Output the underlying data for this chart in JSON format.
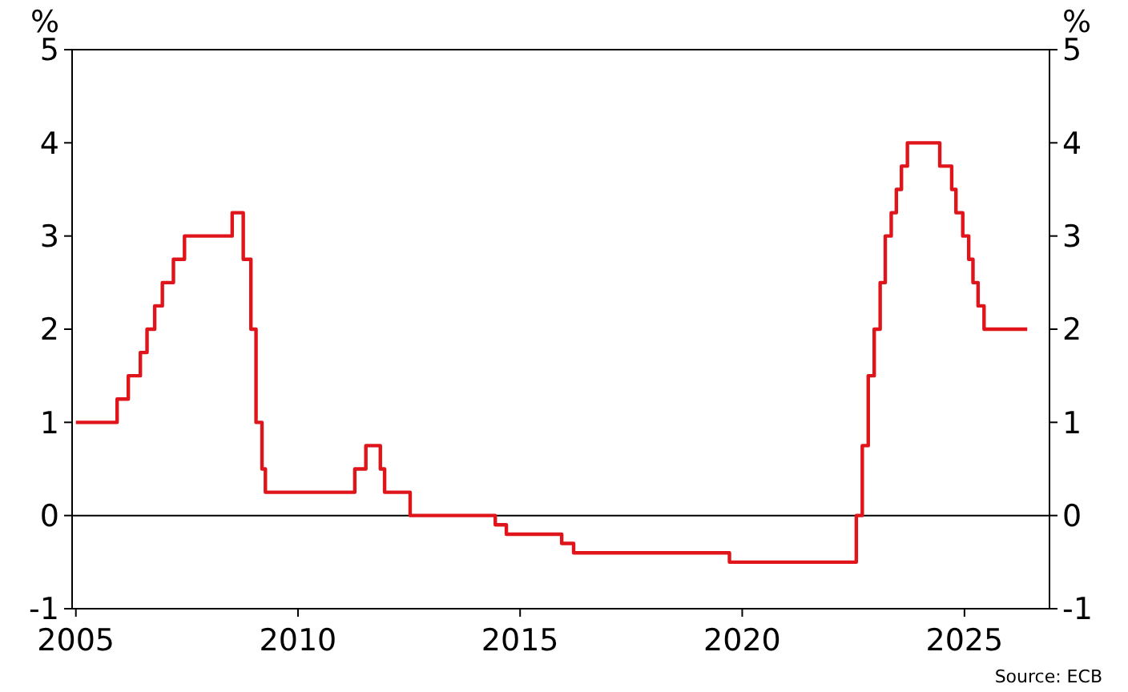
{
  "chart_data": {
    "type": "step",
    "ylabel": "%",
    "y2label": "%",
    "annotations": [
      "Source: ECB"
    ],
    "x": [
      "2005-01",
      "2005-12-06",
      "2006-03-08",
      "2006-06-15",
      "2006-08-09",
      "2006-10-11",
      "2006-12-13",
      "2007-03-14",
      "2007-06-13",
      "2008-07-09",
      "2008-10-08",
      "2008-12-10",
      "2009-01-21",
      "2009-03-11",
      "2009-04-08",
      "2011-04-13",
      "2011-07-13",
      "2011-11-09",
      "2011-12-14",
      "2012-07-11",
      "2014-06-11",
      "2014-09-10",
      "2015-12-09",
      "2016-03-16",
      "2019-09-18",
      "2022-07-27",
      "2022-09-14",
      "2022-11-02",
      "2022-12-21",
      "2023-02-08",
      "2023-03-22",
      "2023-05-10",
      "2023-06-21",
      "2023-08-02",
      "2023-09-20",
      "2024-06-12",
      "2024-09-18",
      "2024-10-23",
      "2024-12-18",
      "2025-02-05",
      "2025-03-12",
      "2025-04-23",
      "2025-06-11",
      "2026-06"
    ],
    "series": [
      {
        "color": "#e0151b",
        "values": [
          1,
          1.25,
          1.5,
          1.75,
          2,
          2.25,
          2.5,
          2.75,
          3,
          3.25,
          2.75,
          2,
          1,
          0.5,
          0.25,
          0.5,
          0.75,
          0.5,
          0.25,
          0,
          -0.1,
          -0.2,
          -0.3,
          -0.4,
          -0.5,
          0,
          0.75,
          1.5,
          2,
          2.5,
          3,
          3.25,
          3.5,
          3.75,
          4,
          3.75,
          3.5,
          3.25,
          3,
          2.75,
          2.5,
          2.25,
          2,
          2
        ]
      }
    ],
    "xlim": [
      "2004-12",
      "2026-12"
    ],
    "xticks": [
      "2005",
      "2010",
      "2015",
      "2020",
      "2025"
    ],
    "ylim": [
      -1,
      5
    ],
    "yticks": [
      -1,
      0,
      1,
      2,
      3,
      4,
      5
    ],
    "y2lim": [
      -1,
      5
    ],
    "y2ticks": [
      -1,
      0,
      1,
      2,
      3,
      4,
      5
    ],
    "ref_lines": [
      {
        "axis": "y",
        "value": 0,
        "color": "#000000"
      }
    ],
    "grid": false,
    "marker": "none",
    "line_style": "solid"
  }
}
